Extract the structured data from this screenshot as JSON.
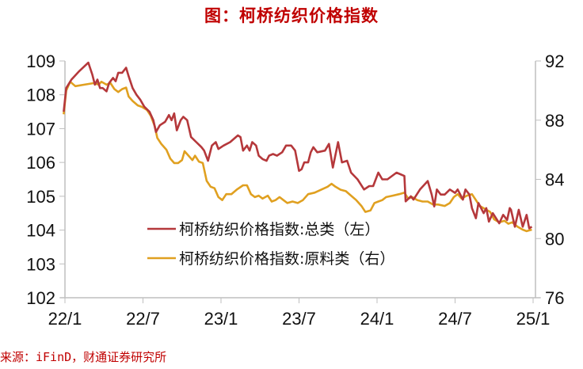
{
  "title": "图：柯桥纺织价格指数",
  "source": "来源：iFinD，财通证券研究所",
  "colors": {
    "series_total": "#b5383b",
    "series_raw": "#e0a020",
    "title": "#c00000",
    "axis": "#bfbfbf"
  },
  "chart_data": {
    "type": "line",
    "title": "图：柯桥纺织价格指数",
    "xlabel": "",
    "ylabel_left": "",
    "ylabel_right": "",
    "x_ticks": [
      "22/1",
      "22/7",
      "23/1",
      "23/7",
      "24/1",
      "24/7",
      "25/1"
    ],
    "ylim_left": [
      102,
      109
    ],
    "yticks_left": [
      102,
      103,
      104,
      105,
      106,
      107,
      108,
      109
    ],
    "ylim_right": [
      76,
      92
    ],
    "yticks_right": [
      76,
      80,
      84,
      88,
      92
    ],
    "grid": false,
    "legend_position": "center-left inside plot",
    "x_unit": "months since 2022-01",
    "series": [
      {
        "name": "柯桥纺织价格指数:总类（左）",
        "axis": "left",
        "points": [
          [
            -0.1,
            107.5
          ],
          [
            0.1,
            108.2
          ],
          [
            0.5,
            108.45
          ],
          [
            1.1,
            108.7
          ],
          [
            1.8,
            108.95
          ],
          [
            2.1,
            108.6
          ],
          [
            2.3,
            108.3
          ],
          [
            2.5,
            108.45
          ],
          [
            2.7,
            108.2
          ],
          [
            2.9,
            108.2
          ],
          [
            3.2,
            108.1
          ],
          [
            3.4,
            108.35
          ],
          [
            3.7,
            108.5
          ],
          [
            3.9,
            108.4
          ],
          [
            4.1,
            108.65
          ],
          [
            4.4,
            108.65
          ],
          [
            4.7,
            108.8
          ],
          [
            4.9,
            108.55
          ],
          [
            5.2,
            108.2
          ],
          [
            5.5,
            108.0
          ],
          [
            5.8,
            107.85
          ],
          [
            6.1,
            107.65
          ],
          [
            6.5,
            107.5
          ],
          [
            6.8,
            107.25
          ],
          [
            7.0,
            106.9
          ],
          [
            7.3,
            107.1
          ],
          [
            7.7,
            107.2
          ],
          [
            8.0,
            107.4
          ],
          [
            8.2,
            107.25
          ],
          [
            8.4,
            107.45
          ],
          [
            8.6,
            106.95
          ],
          [
            8.9,
            107.25
          ],
          [
            9.1,
            107.35
          ],
          [
            9.4,
            107.25
          ],
          [
            9.7,
            106.75
          ],
          [
            10.1,
            106.6
          ],
          [
            10.5,
            106.45
          ],
          [
            10.7,
            106.35
          ],
          [
            11.0,
            106.05
          ],
          [
            11.3,
            106.5
          ],
          [
            11.6,
            106.6
          ],
          [
            11.8,
            106.4
          ],
          [
            12.2,
            106.5
          ],
          [
            12.7,
            106.6
          ],
          [
            13.3,
            106.8
          ],
          [
            13.5,
            106.75
          ],
          [
            13.7,
            106.35
          ],
          [
            14.0,
            106.5
          ],
          [
            14.2,
            106.35
          ],
          [
            14.4,
            106.6
          ],
          [
            14.7,
            106.5
          ],
          [
            14.9,
            106.2
          ],
          [
            15.2,
            106.1
          ],
          [
            15.5,
            106.05
          ],
          [
            15.7,
            106.2
          ],
          [
            16.0,
            106.25
          ],
          [
            16.3,
            106.2
          ],
          [
            16.7,
            106.3
          ],
          [
            17.0,
            106.5
          ],
          [
            17.4,
            106.5
          ],
          [
            17.7,
            106.35
          ],
          [
            18.0,
            105.75
          ],
          [
            18.2,
            105.8
          ],
          [
            18.4,
            106.0
          ],
          [
            18.7,
            106.0
          ],
          [
            18.9,
            106.3
          ],
          [
            19.1,
            106.45
          ],
          [
            19.4,
            106.3
          ],
          [
            20.0,
            106.35
          ],
          [
            20.3,
            106.55
          ],
          [
            20.6,
            105.85
          ],
          [
            21.0,
            106.6
          ],
          [
            21.3,
            106.0
          ],
          [
            21.7,
            106.05
          ],
          [
            22.0,
            105.7
          ],
          [
            22.5,
            105.5
          ],
          [
            23.0,
            105.2
          ],
          [
            23.4,
            105.3
          ],
          [
            23.7,
            105.3
          ],
          [
            24.1,
            105.7
          ],
          [
            24.4,
            105.5
          ],
          [
            24.8,
            105.5
          ],
          [
            25.5,
            105.7
          ],
          [
            26.1,
            105.6
          ],
          [
            26.2,
            104.85
          ],
          [
            26.6,
            105.0
          ],
          [
            26.8,
            104.9
          ],
          [
            27.3,
            105.2
          ],
          [
            27.9,
            105.45
          ],
          [
            28.2,
            105.05
          ],
          [
            28.4,
            104.7
          ],
          [
            28.6,
            105.2
          ],
          [
            28.9,
            105.05
          ],
          [
            29.2,
            105.05
          ],
          [
            29.6,
            105.2
          ],
          [
            30.0,
            105.1
          ],
          [
            30.2,
            105.2
          ],
          [
            30.6,
            104.9
          ],
          [
            30.8,
            105.2
          ],
          [
            31.1,
            105.05
          ],
          [
            31.3,
            104.65
          ],
          [
            31.6,
            104.35
          ],
          [
            31.8,
            104.8
          ],
          [
            32.2,
            104.5
          ],
          [
            32.4,
            104.65
          ],
          [
            32.6,
            104.25
          ],
          [
            32.9,
            104.5
          ],
          [
            33.4,
            104.2
          ],
          [
            33.7,
            104.45
          ],
          [
            34.0,
            104.3
          ],
          [
            34.2,
            104.65
          ],
          [
            34.3,
            104.6
          ],
          [
            34.6,
            104.1
          ],
          [
            34.9,
            104.6
          ],
          [
            35.2,
            104.1
          ],
          [
            35.5,
            104.45
          ],
          [
            35.7,
            104.05
          ],
          [
            35.9,
            104.1
          ]
        ]
      },
      {
        "name": "柯桥纺织价格指数:原料类（右）",
        "axis": "right",
        "points": [
          [
            -0.1,
            88.4
          ],
          [
            0.1,
            90.0
          ],
          [
            0.4,
            90.6
          ],
          [
            0.8,
            90.3
          ],
          [
            1.5,
            90.4
          ],
          [
            2.2,
            90.5
          ],
          [
            2.6,
            90.4
          ],
          [
            2.8,
            90.6
          ],
          [
            3.2,
            90.4
          ],
          [
            3.5,
            90.5
          ],
          [
            3.8,
            90.1
          ],
          [
            4.1,
            89.9
          ],
          [
            4.4,
            90.1
          ],
          [
            4.7,
            90.2
          ],
          [
            4.9,
            89.6
          ],
          [
            5.2,
            89.3
          ],
          [
            5.6,
            89.0
          ],
          [
            5.9,
            88.9
          ],
          [
            6.3,
            88.7
          ],
          [
            6.6,
            88.3
          ],
          [
            6.9,
            87.6
          ],
          [
            7.1,
            86.8
          ],
          [
            7.4,
            86.4
          ],
          [
            7.8,
            86.0
          ],
          [
            8.1,
            85.4
          ],
          [
            8.4,
            85.1
          ],
          [
            8.7,
            85.1
          ],
          [
            9.0,
            85.3
          ],
          [
            9.2,
            85.9
          ],
          [
            9.5,
            85.6
          ],
          [
            9.8,
            85.3
          ],
          [
            10.0,
            85.6
          ],
          [
            10.3,
            85.2
          ],
          [
            10.6,
            85.1
          ],
          [
            10.9,
            83.9
          ],
          [
            11.2,
            83.5
          ],
          [
            11.5,
            83.4
          ],
          [
            11.8,
            82.8
          ],
          [
            12.1,
            82.6
          ],
          [
            12.4,
            83.0
          ],
          [
            12.8,
            83.0
          ],
          [
            13.2,
            83.3
          ],
          [
            13.7,
            83.6
          ],
          [
            14.0,
            83.6
          ],
          [
            14.3,
            83.0
          ],
          [
            14.6,
            82.8
          ],
          [
            14.9,
            82.9
          ],
          [
            15.2,
            82.7
          ],
          [
            15.6,
            82.9
          ],
          [
            15.9,
            82.5
          ],
          [
            16.2,
            82.6
          ],
          [
            16.5,
            82.8
          ],
          [
            16.8,
            82.6
          ],
          [
            17.1,
            82.4
          ],
          [
            17.5,
            82.5
          ],
          [
            17.9,
            82.4
          ],
          [
            18.3,
            82.6
          ],
          [
            18.7,
            83.0
          ],
          [
            19.2,
            83.1
          ],
          [
            19.7,
            83.3
          ],
          [
            20.2,
            83.5
          ],
          [
            20.5,
            83.7
          ],
          [
            20.8,
            83.5
          ],
          [
            21.2,
            83.3
          ],
          [
            21.6,
            83.2
          ],
          [
            22.0,
            82.9
          ],
          [
            22.4,
            82.6
          ],
          [
            22.8,
            82.2
          ],
          [
            23.1,
            81.8
          ],
          [
            23.5,
            81.9
          ],
          [
            23.8,
            82.4
          ],
          [
            24.1,
            82.5
          ],
          [
            24.4,
            82.6
          ],
          [
            24.7,
            82.8
          ],
          [
            25.2,
            82.9
          ],
          [
            25.7,
            83.0
          ],
          [
            26.1,
            83.1
          ],
          [
            26.4,
            82.7
          ],
          [
            26.7,
            82.8
          ],
          [
            27.1,
            82.6
          ],
          [
            27.5,
            82.5
          ],
          [
            27.9,
            82.5
          ],
          [
            28.3,
            82.3
          ],
          [
            28.7,
            82.3
          ],
          [
            29.2,
            82.2
          ],
          [
            29.6,
            82.4
          ],
          [
            29.9,
            82.8
          ],
          [
            30.2,
            83.0
          ],
          [
            30.5,
            82.7
          ],
          [
            30.9,
            82.9
          ],
          [
            31.3,
            83.0
          ],
          [
            31.6,
            82.6
          ],
          [
            31.9,
            82.2
          ],
          [
            32.3,
            82.0
          ],
          [
            32.7,
            81.8
          ],
          [
            33.0,
            81.3
          ],
          [
            33.4,
            81.1
          ],
          [
            33.8,
            81.2
          ],
          [
            34.1,
            81.0
          ],
          [
            34.4,
            81.1
          ],
          [
            34.8,
            80.8
          ],
          [
            35.2,
            80.6
          ],
          [
            35.5,
            80.5
          ],
          [
            35.9,
            80.6
          ]
        ]
      }
    ]
  },
  "legend": [
    {
      "label": "柯桥纺织价格指数:总类（左）",
      "color": "#b5383b"
    },
    {
      "label": "柯桥纺织价格指数:原料类（右）",
      "color": "#e0a020"
    }
  ]
}
